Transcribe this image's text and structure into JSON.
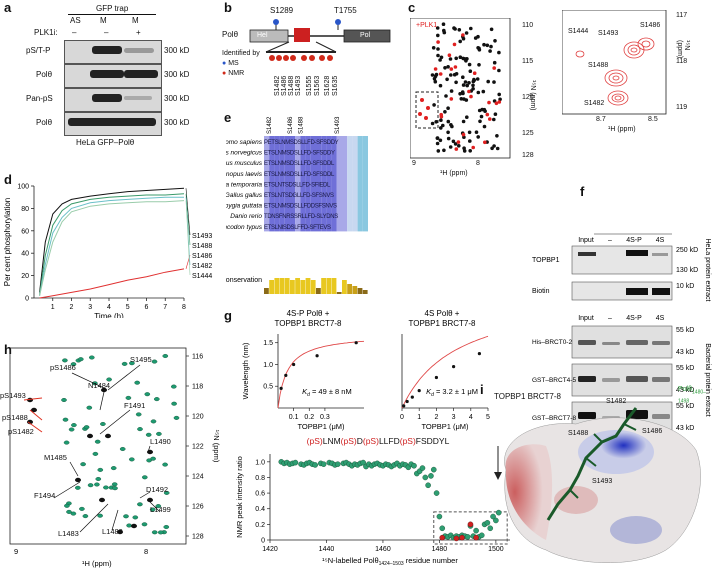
{
  "panels": {
    "a": {
      "letter": "a",
      "header": "GFP trap",
      "lanes": [
        "AS",
        "M",
        "M"
      ],
      "plk_row": {
        "label": "PLK1i:",
        "values": [
          "–",
          "–",
          "+"
        ]
      },
      "rows": [
        {
          "label": "pS/T-P",
          "mw": "300 kD"
        },
        {
          "label": "Polθ",
          "mw": "300 kD"
        },
        {
          "label": "Pan-pS",
          "mw": "300 kD"
        },
        {
          "label": "Polθ",
          "mw": "300 kD"
        }
      ],
      "footer": "HeLa GFP–Polθ"
    },
    "b": {
      "letter": "b",
      "protein": "Polθ",
      "domain_hel": "Hel",
      "domain_pol": "Pol",
      "site_left": "S1289",
      "site_right": "T1755",
      "legend_title": "Identified by",
      "legend_ms": "MS",
      "legend_nmr": "NMR",
      "sites": [
        "S1482",
        "S1486",
        "S1488",
        "S1493",
        "S1555",
        "S1563",
        "S1628",
        "S1635"
      ]
    },
    "c": {
      "letter": "c",
      "tag": "+PLK1",
      "xlabel": "¹H (ppm)",
      "ylabel": "¹⁵N (ppm)",
      "xticks": [
        "9",
        "8"
      ],
      "yticks": [
        "110",
        "115",
        "120",
        "125",
        "128"
      ],
      "zoom": {
        "xlabel": "¹H (ppm)",
        "ylabel": "¹⁵N (ppm)",
        "xticks": [
          "8.7",
          "8.5"
        ],
        "yticks": [
          "117",
          "118",
          "119"
        ],
        "peaks": [
          "S1444",
          "S1493",
          "S1486",
          "S1488",
          "S1482"
        ]
      }
    },
    "d": {
      "letter": "d",
      "ylabel": "Per cent phosphorylation",
      "xlabel": "Time (h)",
      "xticks": [
        "1",
        "2",
        "3",
        "4",
        "5",
        "6",
        "7",
        "8"
      ],
      "yticks": [
        "0",
        "20",
        "40",
        "60",
        "80",
        "100"
      ]
    },
    "e": {
      "letter": "e",
      "site_labels": [
        "S1482",
        "S1486",
        "S1488",
        "S1493"
      ],
      "species": [
        "Homo sapiens",
        "Rattus norvegicus",
        "Mus musculus",
        "Xenopus laevis",
        "Rana temporaria",
        "Gallus gallus",
        "Taeniopygia guttata",
        "Danio rerio",
        "Rhincodon typus"
      ],
      "sequences": [
        "PETSLNMSDSLLFD-SFSDDY",
        "ETSLNMSDSLLFD-SFSDDY",
        "ETSLNMSDSLLFD-SFSDDL",
        "ETSLNMSDSLLFD-SFSDDL",
        "ETSLNTSDSLLFD-SFIEDL",
        "ETSLNTSDGLLFD-SFSNVS",
        "ETSLNMSDSLLFDDSFSNVS",
        "TDNSFNRSSRLLFD-SLYDNS",
        "ETSLNISDSLFFD-SFTEVS"
      ],
      "conservation_label": "Conservation"
    },
    "f": {
      "letter": "f",
      "lanes": [
        "Input",
        "–",
        "4S-P",
        "4S"
      ],
      "top_rows": [
        {
          "label": "TOPBP1",
          "mw": [
            "250 kD",
            "130 kD"
          ]
        },
        {
          "label": "Biotin",
          "mw": [
            "10 kD"
          ]
        }
      ],
      "top_side": "HeLa protein extract",
      "bottom_group": "TOPBP1",
      "bottom_rows": [
        {
          "label": "His–BRCT0-2",
          "mw": [
            "55 kD",
            "43 kD"
          ]
        },
        {
          "label": "GST–BRCT4-5",
          "mw": [
            "55 kD",
            "43 kD"
          ]
        },
        {
          "label": "GST–BRCT7-8",
          "mw": [
            "55 kD",
            "43 kD"
          ]
        }
      ],
      "bottom_side": "Bacterial protein extract"
    },
    "g": {
      "letter": "g",
      "title_left": "4S-P Polθ +\nTOPBP1 BRCT7-8",
      "title_left_1": "4S-P Polθ +",
      "title_left_2": "TOPBP1 BRCT7-8",
      "title_right_1": "4S Polθ +",
      "title_right_2": "TOPBP1 BRCT7-8",
      "kd_left": "K",
      "kd_left_sub": "d",
      "kd_left_val": " = 49 ± 8 nM",
      "kd_right_val": " = 3.2 ± 1 μM",
      "ylabel": "Wavelength (nm)",
      "xlabel": "TOPBP1 (μM)",
      "left_yticks": [
        "1.5",
        "1.0",
        "0.5"
      ],
      "left_xticks": [
        "0.1",
        "0.2",
        "0.3"
      ],
      "right_xticks": [
        "0",
        "1",
        "2",
        "3",
        "4",
        "5"
      ],
      "sequence_parts": [
        {
          "text": "(pS)",
          "red": true
        },
        {
          "text": "LNM",
          "red": false
        },
        {
          "text": "(pS)",
          "red": true
        },
        {
          "text": "D",
          "red": false
        },
        {
          "text": "(pS)",
          "red": true
        },
        {
          "text": "LLFD",
          "red": false
        },
        {
          "text": "(pS)",
          "red": true
        },
        {
          "text": "FSDDYL",
          "red": false
        }
      ],
      "nmr_ylabel": "NMR peak intensity ratio",
      "nmr_xlabel": "¹⁵N-labelled Polθ",
      "nmr_xlabel_sub": "1424–1503",
      "nmr_xlabel_tail": " residue number",
      "nmr_yticks": [
        "1.0",
        "0.8",
        "0.6",
        "0.4",
        "0.2",
        "0"
      ],
      "nmr_xticks": [
        "1420",
        "1440",
        "1460",
        "1480",
        "1500"
      ]
    },
    "h": {
      "letter": "h",
      "labels": [
        "pS1493",
        "pS1488",
        "pS1482",
        "pS1486",
        "N1484",
        "S1495",
        "F1491",
        "L1490",
        "M1485",
        "F1494",
        "D1492",
        "L1499",
        "L1483",
        "L1489"
      ],
      "xlabel": "¹H (ppm)",
      "ylabel": "¹⁵N (ppm)",
      "xticks": [
        "9",
        "8"
      ],
      "yticks": [
        "116",
        "118",
        "120",
        "122",
        "124",
        "126",
        "128"
      ]
    },
    "i": {
      "letter": "i",
      "title": "TOPBP1 BRCT7-8",
      "ligand": "Polθ",
      "ligand_sub": "1480–1498",
      "sites": [
        "S1482",
        "S1488",
        "S1486",
        "S1493"
      ]
    }
  },
  "chart_data": [
    {
      "type": "line",
      "panel": "d",
      "xlabel": "Time (h)",
      "ylabel": "Per cent phosphorylation",
      "xlim": [
        0,
        8
      ],
      "ylim": [
        0,
        100
      ],
      "series": [
        {
          "name": "S1493",
          "color": "#111111",
          "points": [
            [
              0.3,
              5
            ],
            [
              0.6,
              50
            ],
            [
              1,
              75
            ],
            [
              1.5,
              84
            ],
            [
              2,
              88
            ],
            [
              3,
              91
            ],
            [
              4,
              93
            ],
            [
              5,
              95
            ],
            [
              6,
              96
            ],
            [
              7,
              97
            ],
            [
              8,
              98
            ]
          ]
        },
        {
          "name": "S1488",
          "color": "#3a9a6a",
          "points": [
            [
              0.3,
              3
            ],
            [
              0.6,
              38
            ],
            [
              1,
              65
            ],
            [
              1.5,
              78
            ],
            [
              2,
              84
            ],
            [
              3,
              88
            ],
            [
              4,
              90
            ],
            [
              5,
              91
            ],
            [
              6,
              92
            ],
            [
              7,
              92
            ],
            [
              8,
              93
            ]
          ]
        },
        {
          "name": "S1486",
          "color": "#e03030",
          "points": [
            [
              0.3,
              0
            ],
            [
              1,
              2
            ],
            [
              2,
              5
            ],
            [
              3,
              8
            ],
            [
              4,
              12
            ],
            [
              5,
              16
            ],
            [
              6,
              19
            ],
            [
              7,
              23
            ],
            [
              8,
              26
            ]
          ]
        },
        {
          "name": "S1482",
          "color": "#6ac0c8",
          "points": [
            [
              0.3,
              2
            ],
            [
              0.6,
              30
            ],
            [
              1,
              58
            ],
            [
              1.5,
              72
            ],
            [
              2,
              80
            ],
            [
              3,
              85
            ],
            [
              4,
              87
            ],
            [
              5,
              88
            ],
            [
              6,
              89
            ],
            [
              7,
              90
            ],
            [
              8,
              90
            ]
          ]
        },
        {
          "name": "S1444",
          "color": "#99ccaa",
          "points": [
            [
              0.3,
              2
            ],
            [
              0.6,
              25
            ],
            [
              1,
              50
            ],
            [
              1.5,
              68
            ],
            [
              2,
              77
            ],
            [
              3,
              82
            ],
            [
              4,
              84
            ],
            [
              5,
              85
            ],
            [
              6,
              86
            ],
            [
              7,
              86
            ],
            [
              8,
              87
            ]
          ]
        }
      ]
    },
    {
      "type": "scatter",
      "panel": "g-left",
      "xlabel": "TOPBP1 (μM)",
      "ylabel": "Wavelength (nm)",
      "xlim": [
        0,
        0.55
      ],
      "ylim": [
        0,
        1.7
      ],
      "x": [
        0.02,
        0.05,
        0.1,
        0.25,
        0.5
      ],
      "y": [
        0.45,
        0.75,
        1.0,
        1.2,
        1.5
      ]
    },
    {
      "type": "scatter",
      "panel": "g-right",
      "xlabel": "TOPBP1 (μM)",
      "xlim": [
        0,
        5
      ],
      "ylim": [
        0,
        1.7
      ],
      "x": [
        0.1,
        0.3,
        0.6,
        1.0,
        2.0,
        3.0,
        4.5
      ],
      "y": [
        0.05,
        0.15,
        0.25,
        0.4,
        0.7,
        0.95,
        1.25
      ]
    },
    {
      "type": "scatter",
      "panel": "g-nmr",
      "xlabel": "residue number",
      "ylabel": "NMR peak intensity ratio",
      "xlim": [
        1420,
        1505
      ],
      "ylim": [
        0,
        1.1
      ],
      "x": [
        1424,
        1425,
        1426,
        1427,
        1428,
        1429,
        1431,
        1432,
        1433,
        1434,
        1435,
        1436,
        1438,
        1439,
        1441,
        1442,
        1443,
        1444,
        1446,
        1447,
        1448,
        1449,
        1450,
        1451,
        1452,
        1453,
        1454,
        1455,
        1456,
        1457,
        1458,
        1459,
        1460,
        1461,
        1462,
        1463,
        1464,
        1465,
        1466,
        1467,
        1468,
        1469,
        1470,
        1471,
        1472,
        1473,
        1474,
        1475,
        1476,
        1477,
        1478,
        1479,
        1480,
        1481,
        1482,
        1483,
        1484,
        1485,
        1486,
        1487,
        1488,
        1489,
        1490,
        1491,
        1492,
        1493,
        1494,
        1495,
        1496,
        1497,
        1498,
        1499,
        1500,
        1501
      ],
      "y": [
        1.0,
        0.98,
        0.99,
        0.97,
        0.98,
        0.99,
        0.97,
        0.96,
        0.98,
        0.99,
        0.97,
        0.96,
        0.98,
        0.97,
        0.99,
        0.98,
        0.96,
        0.97,
        0.98,
        0.99,
        0.97,
        0.95,
        0.97,
        0.96,
        0.98,
        0.99,
        0.94,
        0.97,
        0.95,
        0.97,
        0.98,
        0.96,
        0.95,
        0.97,
        0.96,
        0.94,
        0.96,
        0.98,
        0.95,
        0.97,
        0.96,
        0.93,
        0.97,
        0.95,
        0.85,
        0.88,
        0.92,
        0.8,
        0.7,
        0.82,
        0.9,
        0.6,
        0.3,
        0.15,
        0.05,
        0.04,
        0.06,
        0.03,
        0.05,
        0.04,
        0.06,
        0.05,
        0.04,
        0.18,
        0.05,
        0.12,
        0.04,
        0.06,
        0.2,
        0.22,
        0.15,
        0.3,
        0.25,
        0.35
      ],
      "red_points": [
        [
          1481,
          0.03
        ],
        [
          1486,
          0.02
        ],
        [
          1488,
          0.03
        ],
        [
          1493,
          0.03
        ],
        [
          1491,
          0.2
        ]
      ]
    }
  ]
}
